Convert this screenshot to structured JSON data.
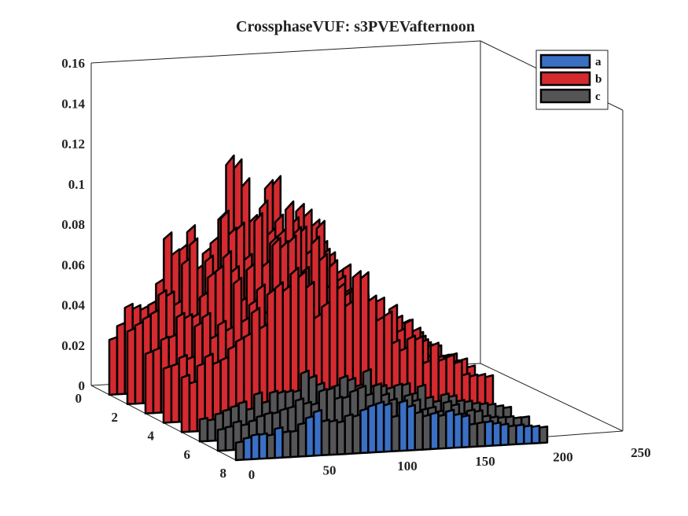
{
  "chart_data": {
    "type": "3d-ribbon",
    "title": "CrossphaseVUF: s3PVEVafternoon",
    "xlabel": "",
    "ylabel": "",
    "zlabel": "",
    "x_ticks": [
      "0",
      "50",
      "100",
      "150",
      "200",
      "250"
    ],
    "y_ticks": [
      "0",
      "2",
      "4",
      "6",
      "8"
    ],
    "z_ticks": [
      "0",
      "0.02",
      "0.04",
      "0.06",
      "0.08",
      "0.1",
      "0.12",
      "0.14",
      "0.16"
    ],
    "xlim": [
      0,
      250
    ],
    "ylim": [
      0,
      8
    ],
    "zlim": [
      0,
      0.16
    ],
    "legend_position": "top-right",
    "series": [
      {
        "name": "a",
        "color": "#3a6fc4",
        "level": 0.008
      },
      {
        "name": "b",
        "color": "#d42a30",
        "level": 0.09
      },
      {
        "name": "c",
        "color": "#555558",
        "level": 0.04
      }
    ]
  }
}
